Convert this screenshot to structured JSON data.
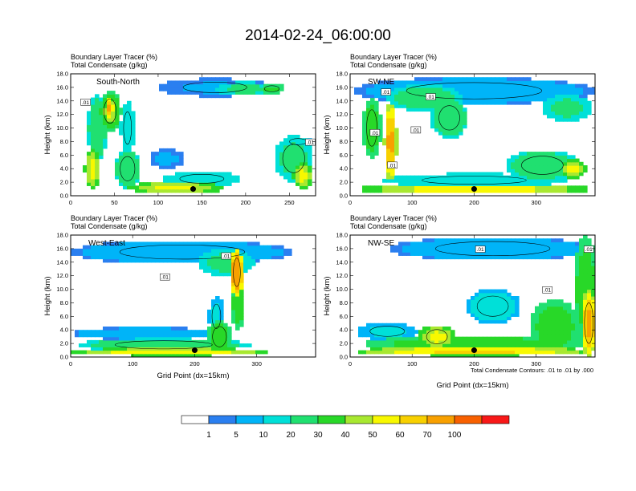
{
  "figure": {
    "title": "2014-02-24_06:00:00",
    "contour_note": "Total Condensate Contours: .01 to .01 by .000",
    "xlabel": "Grid Point (dx=15km)"
  },
  "colors": {
    "levels": [
      "#ffffff",
      "#2a7ff0",
      "#00b4f8",
      "#00e0d8",
      "#20e070",
      "#28d828",
      "#a8e830",
      "#f8f800",
      "#f8d000",
      "#f8a000",
      "#f86000",
      "#f81818"
    ],
    "contour": "#000000",
    "frame": "#000000"
  },
  "legend": {
    "labels": [
      "1",
      "5",
      "10",
      "20",
      "30",
      "40",
      "50",
      "60",
      "70",
      "100"
    ]
  },
  "chart_data": [
    {
      "type": "heatmap",
      "panel": "South-North",
      "label": "South-North",
      "header_left": "Boundary Layer Tracer",
      "header_left_units": "(%)",
      "header_left2": "Total Condensate",
      "header_left2_units": "(g/kg)",
      "ylabel": "Height (km)",
      "xlabel": "",
      "xlim": [
        0,
        280
      ],
      "xticks": [
        "0",
        "50",
        "100",
        "150",
        "200",
        "250"
      ],
      "xtick_values": [
        0,
        50,
        100,
        150,
        200,
        250
      ],
      "ylim": [
        0,
        18
      ],
      "yticks": [
        "0.0",
        "2.0",
        "4.0",
        "6.0",
        "8.0",
        "10.0",
        "12.0",
        "14.0",
        "16.0",
        "18.0"
      ],
      "contour_labels": [
        {
          "text": ".01",
          "x": 17,
          "y": 13.7
        },
        {
          "text": ".01",
          "x": 274,
          "y": 7.8
        }
      ],
      "marker": {
        "x": 140,
        "y": 1.0
      },
      "blobs": [
        {
          "x": 165,
          "y": 16.0,
          "w": 130,
          "h": 2.6,
          "v": 6
        },
        {
          "x": 200,
          "y": 15.8,
          "w": 70,
          "h": 2.0,
          "v": 25
        },
        {
          "x": 230,
          "y": 15.8,
          "w": 30,
          "h": 1.5,
          "v": 35
        },
        {
          "x": 30,
          "y": 10.0,
          "w": 22,
          "h": 10,
          "v": 30
        },
        {
          "x": 45,
          "y": 12.5,
          "w": 25,
          "h": 6,
          "v": 45
        },
        {
          "x": 45,
          "y": 13.0,
          "w": 8,
          "h": 3,
          "v": 80
        },
        {
          "x": 65,
          "y": 10.0,
          "w": 16,
          "h": 8,
          "v": 20
        },
        {
          "x": 25,
          "y": 4.0,
          "w": 18,
          "h": 6,
          "v": 55
        },
        {
          "x": 65,
          "y": 4.0,
          "w": 30,
          "h": 6,
          "v": 30
        },
        {
          "x": 110,
          "y": 5.5,
          "w": 40,
          "h": 3,
          "v": 6
        },
        {
          "x": 150,
          "y": 2.5,
          "w": 90,
          "h": 2.2,
          "v": 20
        },
        {
          "x": 120,
          "y": 1.2,
          "w": 110,
          "h": 1.8,
          "v": 55
        },
        {
          "x": 255,
          "y": 5.5,
          "w": 45,
          "h": 7,
          "v": 25
        },
        {
          "x": 265,
          "y": 3.0,
          "w": 22,
          "h": 4,
          "v": 55
        },
        {
          "x": 260,
          "y": 8.0,
          "w": 35,
          "h": 1.5,
          "v": 8
        }
      ]
    },
    {
      "type": "heatmap",
      "panel": "SW-NE",
      "label": "SW-NE",
      "header_left": "Boundary Layer Tracer",
      "header_left_units": "(%)",
      "header_left2": "Total Condensate",
      "header_left2_units": "(g/kg)",
      "ylabel": "Height (km)",
      "xlabel": "",
      "xlim": [
        0,
        395
      ],
      "xticks": [
        "0",
        "100",
        "200",
        "300"
      ],
      "xtick_values": [
        0,
        100,
        200,
        300
      ],
      "ylim": [
        0,
        18
      ],
      "yticks": [
        "0.0",
        "2.0",
        "4.0",
        "6.0",
        "8.0",
        "10.0",
        "12.0",
        "14.0",
        "16.0",
        "18.0"
      ],
      "contour_labels": [
        {
          "text": ".01",
          "x": 58,
          "y": 15.2
        },
        {
          "text": ".01",
          "x": 130,
          "y": 14.5
        },
        {
          "text": ".01",
          "x": 40,
          "y": 9.2
        },
        {
          "text": ".01",
          "x": 106,
          "y": 9.6
        },
        {
          "text": ".01",
          "x": 68,
          "y": 4.4
        }
      ],
      "marker": {
        "x": 200,
        "y": 1.0
      },
      "blobs": [
        {
          "x": 200,
          "y": 15.5,
          "w": 390,
          "h": 4,
          "v": 8
        },
        {
          "x": 120,
          "y": 14.5,
          "w": 120,
          "h": 4,
          "v": 28
        },
        {
          "x": 35,
          "y": 10.0,
          "w": 30,
          "h": 9,
          "v": 40
        },
        {
          "x": 65,
          "y": 8.0,
          "w": 20,
          "h": 12,
          "v": 75
        },
        {
          "x": 160,
          "y": 11.5,
          "w": 60,
          "h": 6,
          "v": 30
        },
        {
          "x": 350,
          "y": 13.0,
          "w": 80,
          "h": 4,
          "v": 25
        },
        {
          "x": 200,
          "y": 2.3,
          "w": 300,
          "h": 2,
          "v": 20
        },
        {
          "x": 200,
          "y": 1.0,
          "w": 380,
          "h": 1.5,
          "v": 60
        },
        {
          "x": 310,
          "y": 4.5,
          "w": 120,
          "h": 4.5,
          "v": 30
        },
        {
          "x": 360,
          "y": 4.0,
          "w": 40,
          "h": 3,
          "v": 55
        }
      ]
    },
    {
      "type": "heatmap",
      "panel": "West-East",
      "label": "West-East",
      "header_left": "Boundary Layer Tracer",
      "header_left_units": "(%)",
      "header_left2": "Total Condensate",
      "header_left2_units": "(g/kg)",
      "ylabel": "Height (km)",
      "xlabel": "Grid Point (dx=15km)",
      "xlim": [
        0,
        395
      ],
      "xticks": [
        "0",
        "100",
        "200",
        "300"
      ],
      "xtick_values": [
        0,
        100,
        200,
        300
      ],
      "ylim": [
        0,
        18
      ],
      "yticks": [
        "0.0",
        "2.0",
        "4.0",
        "6.0",
        "8.0",
        "10.0",
        "12.0",
        "14.0",
        "16.0",
        "18.0"
      ],
      "contour_labels": [
        {
          "text": ".01",
          "x": 251,
          "y": 14.8
        },
        {
          "text": ".01",
          "x": 152,
          "y": 11.7
        }
      ],
      "marker": {
        "x": 200,
        "y": 1.0
      },
      "blobs": [
        {
          "x": 180,
          "y": 15.5,
          "w": 360,
          "h": 3.5,
          "v": 8
        },
        {
          "x": 250,
          "y": 14.0,
          "w": 90,
          "h": 4,
          "v": 25
        },
        {
          "x": 268,
          "y": 12.5,
          "w": 20,
          "h": 7,
          "v": 90
        },
        {
          "x": 270,
          "y": 8.0,
          "w": 22,
          "h": 8,
          "v": 40
        },
        {
          "x": 235,
          "y": 6.0,
          "w": 25,
          "h": 6,
          "v": 12
        },
        {
          "x": 120,
          "y": 3.5,
          "w": 240,
          "h": 1.8,
          "v": 8
        },
        {
          "x": 150,
          "y": 1.8,
          "w": 280,
          "h": 2,
          "v": 30
        },
        {
          "x": 160,
          "y": 0.8,
          "w": 320,
          "h": 1.2,
          "v": 60
        },
        {
          "x": 240,
          "y": 3.0,
          "w": 40,
          "h": 5,
          "v": 40
        }
      ]
    },
    {
      "type": "heatmap",
      "panel": "NW-SE",
      "label": "NW-SE",
      "header_left": "Boundary Layer Tracer",
      "header_left_units": "(%)",
      "header_left2": "Total Condensate",
      "header_left2_units": "(g/kg)",
      "ylabel": "Height (km)",
      "xlabel": "Grid Point (dx=15km)",
      "xlim": [
        0,
        395
      ],
      "xticks": [
        "0",
        "100",
        "200",
        "300"
      ],
      "xtick_values": [
        0,
        100,
        200,
        300
      ],
      "ylim": [
        0,
        18
      ],
      "yticks": [
        "0.0",
        "2.0",
        "4.0",
        "6.0",
        "8.0",
        "10.0",
        "12.0",
        "14.0",
        "16.0",
        "18.0"
      ],
      "contour_labels": [
        {
          "text": ".01",
          "x": 210,
          "y": 15.8
        },
        {
          "text": ".01",
          "x": 385,
          "y": 15.8
        },
        {
          "text": ".01",
          "x": 318,
          "y": 9.8
        }
      ],
      "marker": {
        "x": 200,
        "y": 1.0
      },
      "blobs": [
        {
          "x": 230,
          "y": 16.0,
          "w": 330,
          "h": 3.5,
          "v": 8
        },
        {
          "x": 380,
          "y": 10.0,
          "w": 40,
          "h": 16,
          "v": 40
        },
        {
          "x": 385,
          "y": 5.0,
          "w": 25,
          "h": 10,
          "v": 75
        },
        {
          "x": 330,
          "y": 4.5,
          "w": 80,
          "h": 8,
          "v": 40
        },
        {
          "x": 230,
          "y": 7.5,
          "w": 90,
          "h": 5,
          "v": 15
        },
        {
          "x": 200,
          "y": 2.0,
          "w": 360,
          "h": 2.5,
          "v": 40
        },
        {
          "x": 140,
          "y": 3.0,
          "w": 60,
          "h": 3.5,
          "v": 55
        },
        {
          "x": 200,
          "y": 0.9,
          "w": 380,
          "h": 1.4,
          "v": 65
        },
        {
          "x": 60,
          "y": 3.8,
          "w": 100,
          "h": 2.5,
          "v": 12
        }
      ]
    }
  ]
}
